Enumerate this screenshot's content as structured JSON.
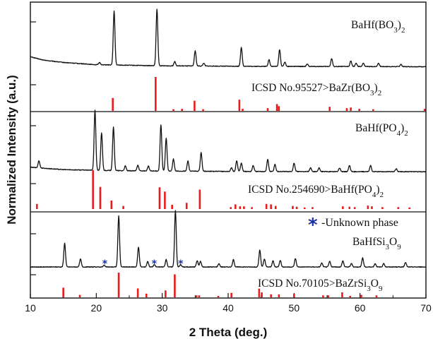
{
  "chart_data": {
    "type": "line",
    "xlabel": "2 Theta (deg.)",
    "ylabel": "Normalized Intensity (a.u.)",
    "xlim": [
      10,
      70
    ],
    "xticks": [
      10,
      20,
      30,
      40,
      50,
      60,
      70
    ],
    "grid": false,
    "colors": {
      "pattern": "#111111",
      "reference": "#e81c1c",
      "marker": "#1a2fa0",
      "axis": "#111111"
    },
    "marker_note": {
      "symbol": "*",
      "text": "-Unknown phase"
    },
    "panels": [
      {
        "sample": {
          "base": "BaHf(BO",
          "sub1": "3",
          "mid": ")",
          "sub2": "2"
        },
        "reference": {
          "base": "ICSD No.95527>BaZr(BO",
          "sub1": "3",
          "mid": ")",
          "sub2": "2"
        },
        "baseline": [
          [
            10,
            0.22
          ],
          [
            12,
            0.16
          ],
          [
            15,
            0.12
          ],
          [
            20,
            0.08
          ],
          [
            30,
            0.06
          ],
          [
            45,
            0.05
          ],
          [
            70,
            0.045
          ]
        ],
        "peaks": [
          [
            20.5,
            0.04
          ],
          [
            22.7,
            0.95
          ],
          [
            29.2,
            1.0
          ],
          [
            31.9,
            0.08
          ],
          [
            35.0,
            0.27
          ],
          [
            36.3,
            0.05
          ],
          [
            42.0,
            0.33
          ],
          [
            46.2,
            0.12
          ],
          [
            47.8,
            0.3
          ],
          [
            48.6,
            0.08
          ],
          [
            52.0,
            0.04
          ],
          [
            55.7,
            0.14
          ],
          [
            58.6,
            0.1
          ],
          [
            59.4,
            0.06
          ],
          [
            60.5,
            0.06
          ],
          [
            62.8,
            0.06
          ],
          [
            66.2,
            0.04
          ]
        ],
        "ref_peaks": [
          [
            22.5,
            0.38
          ],
          [
            29.0,
            1.0
          ],
          [
            31.7,
            0.05
          ],
          [
            33.0,
            0.06
          ],
          [
            34.9,
            0.3
          ],
          [
            36.2,
            0.05
          ],
          [
            41.7,
            0.33
          ],
          [
            42.2,
            0.06
          ],
          [
            46.0,
            0.08
          ],
          [
            47.4,
            0.2
          ],
          [
            47.7,
            0.14
          ],
          [
            55.4,
            0.12
          ],
          [
            58.0,
            0.08
          ],
          [
            58.6,
            0.1
          ],
          [
            59.9,
            0.06
          ],
          [
            62.0,
            0.05
          ],
          [
            69.8,
            0.06
          ]
        ]
      },
      {
        "sample": {
          "base": "BaHf(PO",
          "sub1": "4",
          "mid": ")",
          "sub2": "2"
        },
        "reference": {
          "base": "ICSD No.254690>BaHf(PO",
          "sub1": "4",
          "mid": ")",
          "sub2": "2"
        },
        "baseline": [
          [
            10,
            0.12
          ],
          [
            15,
            0.08
          ],
          [
            25,
            0.06
          ],
          [
            40,
            0.05
          ],
          [
            70,
            0.045
          ]
        ],
        "peaks": [
          [
            11.3,
            0.12
          ],
          [
            19.8,
            1.0
          ],
          [
            20.8,
            0.62
          ],
          [
            22.6,
            0.72
          ],
          [
            24.4,
            0.08
          ],
          [
            26.3,
            0.1
          ],
          [
            27.9,
            0.08
          ],
          [
            29.8,
            0.77
          ],
          [
            30.6,
            0.55
          ],
          [
            31.7,
            0.2
          ],
          [
            33.9,
            0.17
          ],
          [
            35.9,
            0.31
          ],
          [
            40.5,
            0.06
          ],
          [
            41.3,
            0.18
          ],
          [
            42.0,
            0.14
          ],
          [
            43.8,
            0.1
          ],
          [
            46.0,
            0.2
          ],
          [
            47.1,
            0.12
          ],
          [
            50.0,
            0.14
          ],
          [
            52.5,
            0.06
          ],
          [
            53.8,
            0.06
          ],
          [
            56.9,
            0.06
          ],
          [
            58.4,
            0.1
          ],
          [
            61.6,
            0.1
          ],
          [
            65.5,
            0.05
          ]
        ],
        "ref_peaks": [
          [
            11.0,
            0.13
          ],
          [
            19.5,
            1.0
          ],
          [
            20.6,
            0.57
          ],
          [
            22.3,
            0.22
          ],
          [
            24.1,
            0.08
          ],
          [
            29.6,
            0.56
          ],
          [
            30.4,
            0.45
          ],
          [
            31.5,
            0.11
          ],
          [
            33.7,
            0.16
          ],
          [
            35.7,
            0.5
          ],
          [
            40.4,
            0.05
          ],
          [
            41.1,
            0.12
          ],
          [
            41.8,
            0.07
          ],
          [
            42.4,
            0.07
          ],
          [
            43.6,
            0.05
          ],
          [
            45.8,
            0.13
          ],
          [
            46.5,
            0.12
          ],
          [
            47.2,
            0.08
          ],
          [
            49.8,
            0.08
          ],
          [
            50.4,
            0.06
          ],
          [
            51.6,
            0.04
          ],
          [
            52.8,
            0.05
          ],
          [
            57.4,
            0.07
          ],
          [
            58.4,
            0.06
          ],
          [
            59.2,
            0.05
          ],
          [
            61.2,
            0.09
          ],
          [
            61.8,
            0.07
          ],
          [
            63.4,
            0.05
          ],
          [
            65.8,
            0.05
          ],
          [
            67.5,
            0.04
          ]
        ]
      },
      {
        "sample": {
          "base": "BaHfSi",
          "sub1": "3",
          "mid": "O",
          "sub2": "9"
        },
        "reference": {
          "base": "ICSD No.70105>BaZrSi",
          "sub1": "3",
          "mid": "O",
          "sub2": "9"
        },
        "baseline": [
          [
            10,
            0.0
          ],
          [
            70,
            0.0
          ]
        ],
        "peaks": [
          [
            15.2,
            0.42
          ],
          [
            17.6,
            0.14
          ],
          [
            21.2,
            0.03
          ],
          [
            23.4,
            0.9
          ],
          [
            26.4,
            0.35
          ],
          [
            27.8,
            0.1
          ],
          [
            28.8,
            0.04
          ],
          [
            30.6,
            0.13
          ],
          [
            32.0,
            1.0
          ],
          [
            32.8,
            0.04
          ],
          [
            35.3,
            0.11
          ],
          [
            35.8,
            0.1
          ],
          [
            38.6,
            0.06
          ],
          [
            40.8,
            0.13
          ],
          [
            44.8,
            0.3
          ],
          [
            45.5,
            0.14
          ],
          [
            46.8,
            0.11
          ],
          [
            47.9,
            0.12
          ],
          [
            50.2,
            0.15
          ],
          [
            54.2,
            0.07
          ],
          [
            55.4,
            0.1
          ],
          [
            57.4,
            0.11
          ],
          [
            58.7,
            0.06
          ],
          [
            60.4,
            0.16
          ],
          [
            62.3,
            0.06
          ],
          [
            63.6,
            0.06
          ],
          [
            66.9,
            0.08
          ]
        ],
        "unknown_markers": [
          21.3,
          28.8,
          32.8
        ],
        "ref_peaks": [
          [
            15.0,
            0.39
          ],
          [
            17.5,
            0.1
          ],
          [
            23.4,
            1.0
          ],
          [
            26.3,
            0.36
          ],
          [
            27.6,
            0.15
          ],
          [
            30.5,
            0.28
          ],
          [
            31.9,
            0.93
          ],
          [
            35.2,
            0.08
          ],
          [
            35.6,
            0.08
          ],
          [
            38.5,
            0.06
          ],
          [
            40.5,
            0.18
          ],
          [
            44.7,
            0.35
          ],
          [
            45.1,
            0.2
          ],
          [
            46.5,
            0.12
          ],
          [
            47.7,
            0.12
          ],
          [
            50.0,
            0.14
          ],
          [
            54.4,
            0.08
          ],
          [
            55.2,
            0.08
          ],
          [
            57.3,
            0.2
          ],
          [
            58.5,
            0.06
          ],
          [
            60.2,
            0.1
          ],
          [
            62.5,
            0.08
          ]
        ]
      }
    ]
  }
}
